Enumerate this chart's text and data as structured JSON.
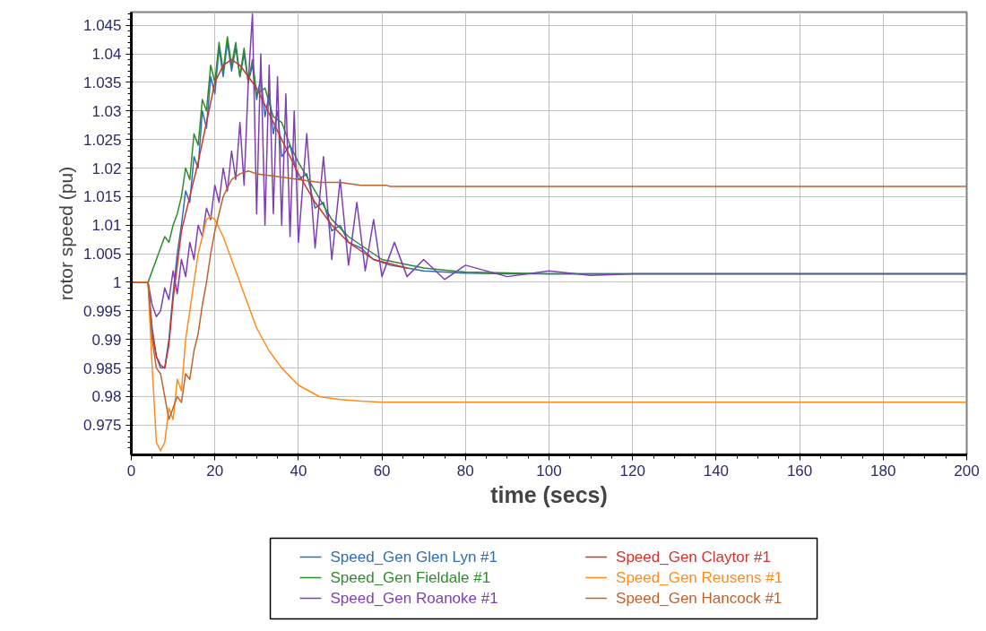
{
  "chart_data": {
    "type": "line",
    "xlabel": "time (secs)",
    "ylabel": "rotor speed (pu)",
    "xlim": [
      0,
      200
    ],
    "ylim": [
      0.9698,
      1.0473
    ],
    "xticks": [
      0,
      20,
      40,
      60,
      80,
      100,
      120,
      140,
      160,
      180,
      200
    ],
    "yticks": [
      0.975,
      0.98,
      0.985,
      0.99,
      0.995,
      {
        "value": 1,
        "label": "1"
      },
      1.005,
      1.01,
      1.015,
      1.02,
      1.025,
      1.03,
      1.035,
      1.04,
      1.045
    ],
    "grid": true,
    "legend": "bottom",
    "marker": "none",
    "line_style": "solid",
    "series": [
      {
        "name": "Speed_Gen Glen Lyn #1",
        "color": "#2f6db5",
        "x": [
          0,
          4,
          5,
          6,
          7,
          8,
          9,
          10,
          11,
          12,
          13,
          14,
          15,
          16,
          17,
          18,
          19,
          20,
          21,
          22,
          23,
          24,
          25,
          26,
          27,
          28,
          29,
          30,
          31,
          32,
          33,
          34,
          35,
          36,
          38,
          40,
          42,
          44,
          46,
          48,
          50,
          52,
          55,
          58,
          62,
          66,
          70,
          75,
          80,
          90,
          100,
          120,
          200
        ],
        "values": [
          1,
          1,
          0.992,
          0.987,
          0.985,
          0.985,
          0.99,
          0.998,
          1.005,
          1.01,
          1.016,
          1.014,
          1.022,
          1.02,
          1.03,
          1.027,
          1.036,
          1.033,
          1.041,
          1.036,
          1.042,
          1.037,
          1.041,
          1.036,
          1.04,
          1.035,
          1.038,
          1.032,
          1.036,
          1.029,
          1.033,
          1.026,
          1.03,
          1.022,
          1.024,
          1.018,
          1.019,
          1.013,
          1.014,
          1.009,
          1.01,
          1.007,
          1.006,
          1.004,
          1.003,
          1.0025,
          1.002,
          1.0018,
          1.0016,
          1.0015,
          1.0015,
          1.0015,
          1.0015
        ]
      },
      {
        "name": "Speed_Gen Fieldale #1",
        "color": "#2e8b2e",
        "x": [
          0,
          4,
          5,
          6,
          7,
          8,
          9,
          10,
          11,
          12,
          13,
          14,
          15,
          16,
          17,
          18,
          19,
          20,
          21,
          22,
          23,
          24,
          25,
          26,
          27,
          28,
          29,
          30,
          32,
          34,
          36,
          38,
          40,
          44,
          48,
          52,
          56,
          60,
          70,
          80,
          100,
          200
        ],
        "values": [
          1,
          1,
          1.002,
          1.004,
          1.006,
          1.008,
          1.007,
          1.01,
          1.012,
          1.015,
          1.02,
          1.018,
          1.026,
          1.024,
          1.032,
          1.03,
          1.038,
          1.035,
          1.042,
          1.037,
          1.043,
          1.038,
          1.042,
          1.036,
          1.041,
          1.035,
          1.039,
          1.033,
          1.034,
          1.029,
          1.028,
          1.024,
          1.021,
          1.016,
          1.011,
          1.008,
          1.006,
          1.004,
          1.0025,
          1.0018,
          1.0015,
          1.0015
        ]
      },
      {
        "name": "Speed_Gen Roanoke #1",
        "color": "#7e3fb5",
        "x": [
          0,
          4,
          5,
          6,
          7,
          8,
          9,
          10,
          11,
          12,
          13,
          14,
          15,
          16,
          17,
          18,
          19,
          20,
          21,
          22,
          23,
          24,
          25,
          26,
          27,
          28,
          29,
          30,
          31,
          32,
          33,
          34,
          35,
          36,
          37,
          38,
          39,
          40,
          42,
          44,
          46,
          48,
          50,
          52,
          54,
          56,
          58,
          60,
          63,
          66,
          70,
          75,
          80,
          90,
          100,
          110,
          120,
          200
        ],
        "values": [
          1,
          1,
          0.996,
          0.994,
          0.995,
          0.999,
          0.997,
          1.002,
          0.998,
          1.004,
          1.001,
          1.007,
          1.004,
          1.01,
          1.008,
          1.013,
          1.011,
          1.017,
          1.014,
          1.02,
          1.016,
          1.023,
          1.018,
          1.028,
          1.017,
          1.035,
          1.047,
          1.012,
          1.04,
          1.01,
          1.038,
          1.012,
          1.036,
          1.01,
          1.033,
          1.008,
          1.03,
          1.007,
          1.026,
          1.006,
          1.022,
          1.004,
          1.018,
          1.003,
          1.014,
          1.002,
          1.011,
          1.001,
          1.007,
          1.001,
          1.004,
          1.0005,
          1.003,
          1.001,
          1.002,
          1.0012,
          1.0015,
          1.0015
        ]
      },
      {
        "name": "Speed_Gen Claytor #1",
        "color": "#d0342c",
        "x": [
          0,
          4,
          5,
          6,
          7,
          8,
          9,
          10,
          12,
          14,
          16,
          18,
          20,
          22,
          24,
          26,
          28,
          30,
          32,
          34,
          36,
          40,
          44,
          48,
          52,
          58,
          66
        ],
        "values": [
          1,
          1,
          0.991,
          0.987,
          0.9855,
          0.985,
          0.989,
          0.997,
          1.009,
          1.015,
          1.021,
          1.028,
          1.035,
          1.038,
          1.039,
          1.038,
          1.036,
          1.034,
          1.031,
          1.028,
          1.025,
          1.019,
          1.014,
          1.01,
          1.007,
          1.004,
          1.0025
        ]
      },
      {
        "name": "Speed_Gen Reusens #1",
        "color": "#ff8c1a",
        "x": [
          0,
          4,
          5,
          6,
          7,
          8,
          9,
          10,
          11,
          12,
          13,
          14,
          15,
          16,
          17,
          18,
          19,
          20,
          22,
          24,
          26,
          28,
          30,
          33,
          36,
          40,
          45,
          50,
          55,
          60,
          68,
          80,
          200
        ],
        "values": [
          1,
          1,
          0.985,
          0.972,
          0.9705,
          0.972,
          0.978,
          0.976,
          0.983,
          0.981,
          0.99,
          0.995,
          1.0,
          1.005,
          1.008,
          1.011,
          1.0115,
          1.011,
          1.008,
          1.004,
          1.0,
          0.996,
          0.992,
          0.988,
          0.985,
          0.982,
          0.98,
          0.9795,
          0.9792,
          0.979,
          0.979,
          0.979,
          0.979
        ]
      },
      {
        "name": "Speed_Gen Hancock #1",
        "color": "#c0622b",
        "x": [
          0,
          4,
          5,
          6,
          7,
          8,
          9,
          10,
          11,
          12,
          13,
          14,
          15,
          16,
          17,
          18,
          19,
          20,
          21,
          22,
          24,
          26,
          28,
          30,
          35,
          40,
          45,
          50,
          55,
          61,
          62,
          200
        ],
        "values": [
          1,
          1,
          0.99,
          0.985,
          0.984,
          0.98,
          0.976,
          0.978,
          0.98,
          0.979,
          0.984,
          0.983,
          0.988,
          0.991,
          0.996,
          1.0,
          1.005,
          1.009,
          1.012,
          1.015,
          1.018,
          1.019,
          1.0195,
          1.019,
          1.0185,
          1.018,
          1.0175,
          1.0175,
          1.017,
          1.017,
          1.0168,
          1.0168
        ]
      }
    ]
  }
}
